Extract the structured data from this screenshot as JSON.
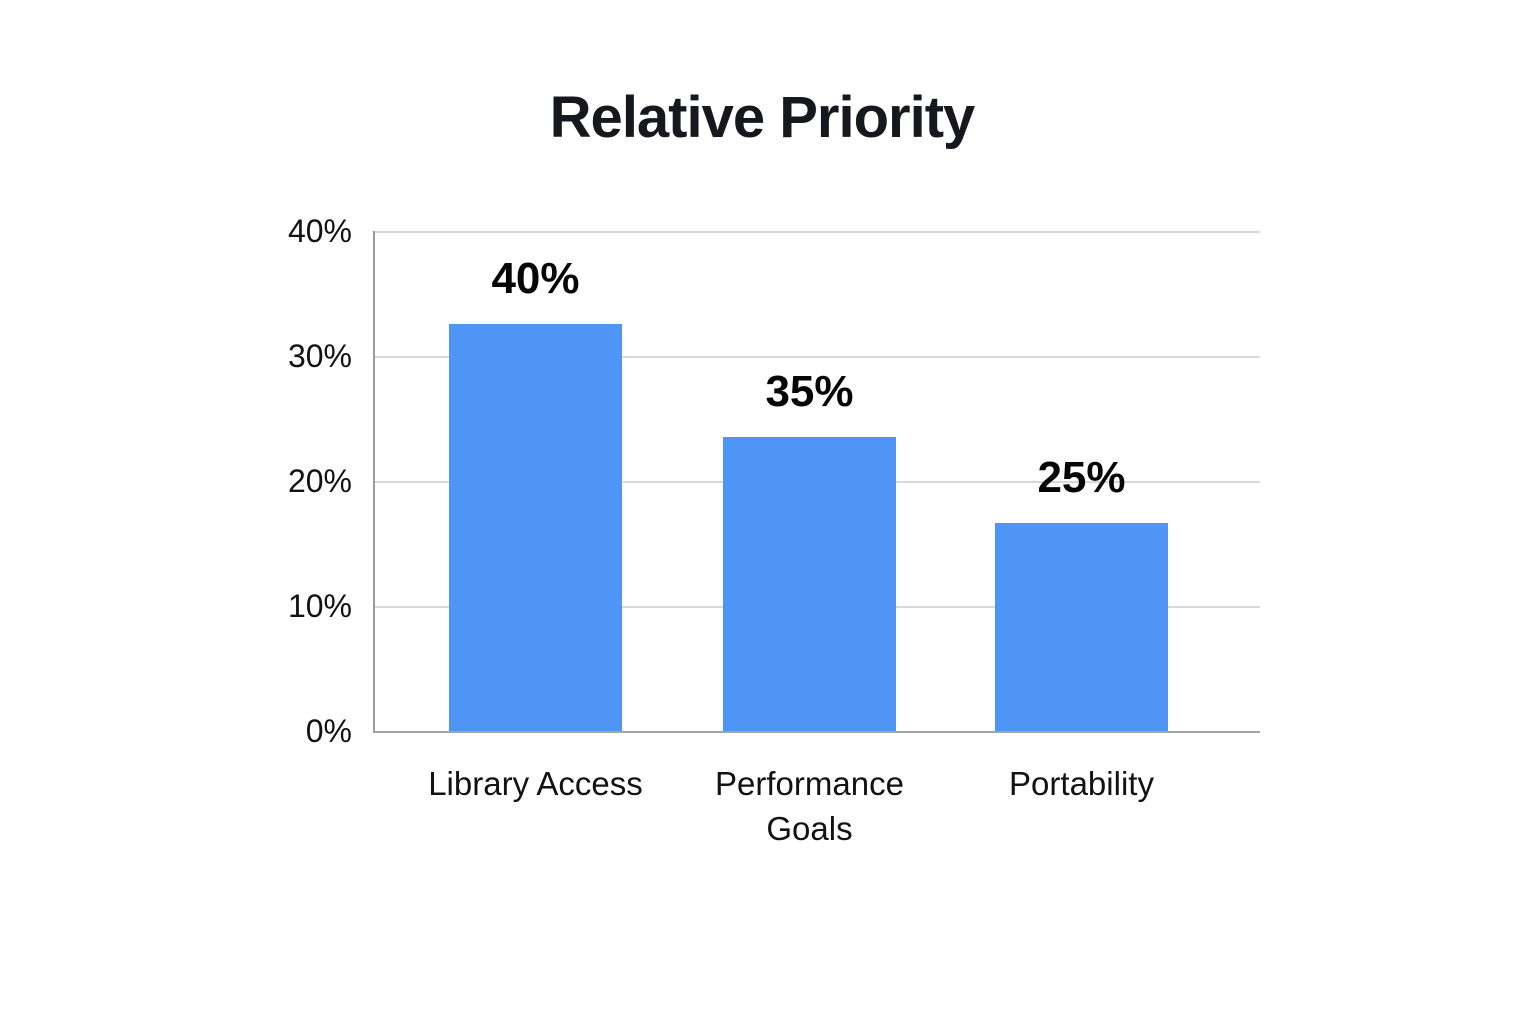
{
  "chart_data": {
    "type": "bar",
    "title": "Relative Priority",
    "categories": [
      "Library Access",
      "Performance Goals",
      "Portability"
    ],
    "category_lines": [
      [
        "Library Access"
      ],
      [
        "Performance",
        "Goals"
      ],
      [
        "Portability"
      ]
    ],
    "values": [
      40,
      35,
      25
    ],
    "data_labels": [
      "40%",
      "35%",
      "25%"
    ],
    "rendered_bar_tops_pct": [
      32.6,
      23.5,
      16.65
    ],
    "xlabel": "",
    "ylabel": "",
    "ylim": [
      0,
      40
    ],
    "yticks": [
      {
        "value": 40,
        "label": "40%"
      },
      {
        "value": 30,
        "label": "30%"
      },
      {
        "value": 20,
        "label": "20%"
      },
      {
        "value": 10,
        "label": "10%"
      },
      {
        "value": 0,
        "label": "0%"
      }
    ],
    "grid": true,
    "legend": false,
    "bar_color": "#4F95F5",
    "grid_color": "#D8D8D8",
    "axis_color": "#9B9B9B",
    "title_color": "#15181D",
    "text_color": "#121212"
  }
}
